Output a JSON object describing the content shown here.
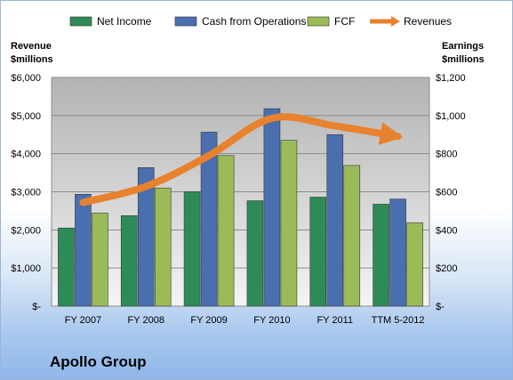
{
  "chart_data": {
    "type": "bar",
    "title": "Apollo Group",
    "categories": [
      "FY 2007",
      "FY 2008",
      "FY 2009",
      "FY 2010",
      "FY 2011",
      "TTM 5-2012"
    ],
    "left_axis": {
      "label_lines": [
        "Revenue",
        "$millions"
      ],
      "ylim": [
        0,
        6000
      ],
      "ticks": [
        "$-",
        "$1,000",
        "$2,000",
        "$3,000",
        "$4,000",
        "$5,000",
        "$6,000"
      ]
    },
    "right_axis": {
      "label_lines": [
        "Earnings",
        "$millions"
      ],
      "ylim": [
        0,
        1200
      ],
      "ticks": [
        "$-",
        "$200",
        "$400",
        "$600",
        "$800",
        "$1,000",
        "$1,200"
      ]
    },
    "series": [
      {
        "name": "Net Income",
        "axis": "right",
        "color": "#2e8b57",
        "values": [
          410,
          475,
          600,
          553,
          572,
          535
        ]
      },
      {
        "name": "Cash from Operations",
        "axis": "right",
        "color": "#4a6faf",
        "values": [
          587,
          727,
          913,
          1036,
          900,
          562
        ]
      },
      {
        "name": "FCF",
        "axis": "right",
        "color": "#9bbb59",
        "values": [
          488,
          620,
          790,
          870,
          738,
          438
        ]
      },
      {
        "name": "Revenues",
        "axis": "left",
        "type": "trend-arrow",
        "color": "#e8822e",
        "values": [
          2720,
          3140,
          3950,
          4930,
          4730,
          4450
        ]
      }
    ],
    "legend_position": "top",
    "grid": true
  }
}
